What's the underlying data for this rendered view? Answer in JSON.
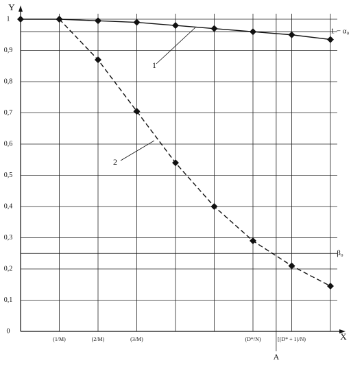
{
  "chart_data": {
    "type": "line",
    "x_label": "X",
    "y_label": "Y",
    "categories": [
      null,
      "(1/M)",
      "(2/M)",
      "(3/M)",
      null,
      null,
      "(D*/N)",
      "[(D* + 1)/N)",
      null
    ],
    "series": [
      {
        "name": "1",
        "color": "#111111",
        "style": "solid",
        "values": [
          1,
          1,
          0.995,
          0.99,
          0.98,
          0.97,
          0.96,
          0.95,
          0.935
        ]
      },
      {
        "name": "2",
        "color": "#111111",
        "style": "dashed",
        "values": [
          null,
          1,
          0.87,
          0.705,
          0.54,
          0.4,
          0.29,
          0.21,
          0.145
        ]
      }
    ],
    "ylim": [
      0,
      1
    ],
    "yticks": [
      0,
      {
        "value": 0.1,
        "label": "0,1"
      },
      {
        "value": 0.2,
        "label": "0,2"
      },
      {
        "value": 0.3,
        "label": "0,3"
      },
      {
        "value": 0.4,
        "label": "0,4"
      },
      {
        "value": 0.5,
        "label": "0,5"
      },
      {
        "value": 0.6,
        "label": "0,6"
      },
      {
        "value": 0.7,
        "label": "0,7"
      },
      {
        "value": 0.8,
        "label": "0,8"
      },
      {
        "value": 0.9,
        "label": "0,9"
      },
      1
    ],
    "grid": true,
    "hlines": [
      {
        "label": "1 − α₀",
        "value": 0.96
      },
      {
        "label": "β₀",
        "value": 0.25
      }
    ],
    "vlines": [
      {
        "label": "A",
        "x": 6.6
      }
    ]
  }
}
